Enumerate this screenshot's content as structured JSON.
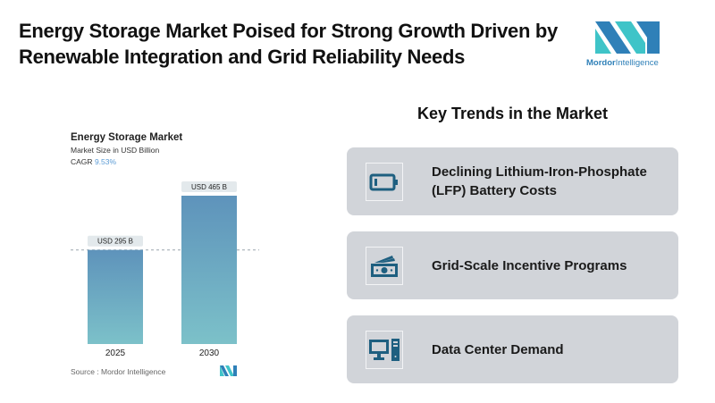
{
  "header": {
    "title": "Energy Storage Market Poised for Strong Growth Driven by Renewable Integration and Grid Reliability Needs",
    "logo_text_bold": "Mordor",
    "logo_text_rest": "Intelligence"
  },
  "colors": {
    "logo_dark": "#2f80b8",
    "logo_light": "#3fc4c8",
    "bar_top": "#5e93bb",
    "bar_bottom": "#7cc1c9",
    "card_bg": "#d1d4d9",
    "icon": "#1e5f80",
    "cagr": "#5b9bd5"
  },
  "chart_data": {
    "type": "bar",
    "title": "Energy Storage Market",
    "subtitle": "Market Size in USD Billion",
    "cagr_label": "CAGR",
    "cagr_value": "9.53%",
    "categories": [
      "2025",
      "2030"
    ],
    "values": [
      295,
      465
    ],
    "data_labels": [
      "USD 295 B",
      "USD 465 B"
    ],
    "unit": "USD Billion",
    "xlabel": "",
    "ylabel": "",
    "ylim": [
      0,
      465
    ],
    "grid": false,
    "reference_line": "dashed line at 2025 value",
    "source": "Source :  Mordor Intelligence"
  },
  "trends": {
    "title": "Key Trends in the Market",
    "items": [
      {
        "label": "Declining Lithium-Iron-Phosphate (LFP) Battery Costs",
        "icon": "battery-icon"
      },
      {
        "label": "Grid-Scale Incentive Programs",
        "icon": "money-icon"
      },
      {
        "label": "Data Center Demand",
        "icon": "computer-icon"
      }
    ]
  }
}
